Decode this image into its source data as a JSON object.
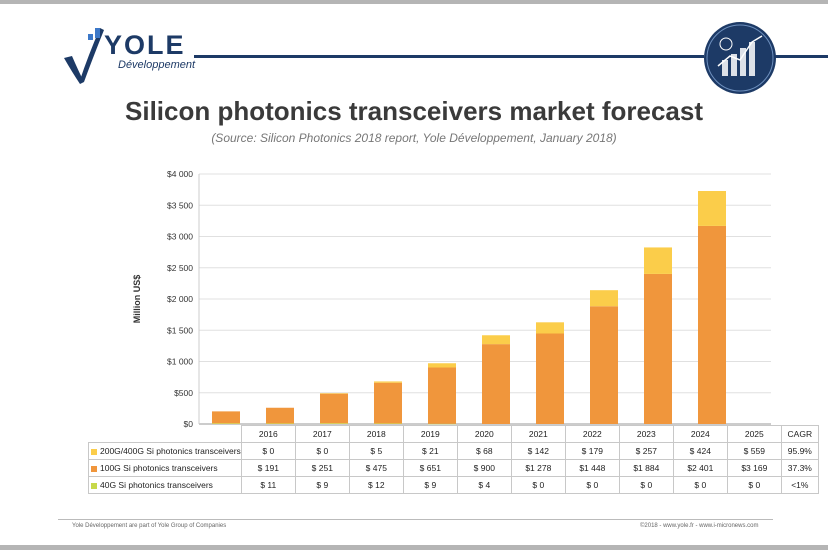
{
  "brand": {
    "name": "YOLE",
    "tagline": "Développement"
  },
  "title": "Silicon photonics transceivers market forecast",
  "subtitle": "(Source: Silicon Photonics 2018 report, Yole Développement, January 2018)",
  "footer": {
    "left": "Yole Développement are part of Yole Group of Companies",
    "right": "©2018 - www.yole.fr - www.i-micronews.com"
  },
  "colors": {
    "s200": "#fbcd4a",
    "s100": "#f0963c",
    "s40": "#c7d84a",
    "brand": "#1d3a66"
  },
  "chart_data": {
    "type": "bar",
    "stacked": true,
    "title": "Silicon photonics transceivers market forecast",
    "ylabel": "Million US$",
    "ylim": [
      0,
      4000
    ],
    "yticks": [
      0,
      500,
      1000,
      1500,
      2000,
      2500,
      3000,
      3500,
      4000
    ],
    "ytick_labels": [
      "$0",
      "$500",
      "$1 000",
      "$1 500",
      "$2 000",
      "$2 500",
      "$3 000",
      "$3 500",
      "$4 000"
    ],
    "grid": true,
    "categories": [
      "2016",
      "2017",
      "2018",
      "2019",
      "2020",
      "2021",
      "2022",
      "2023",
      "2024",
      "2025"
    ],
    "cagr_header": "CAGR",
    "series": [
      {
        "name": "200G/400G Si photonics transceivers",
        "values": [
          0,
          0,
          5,
          21,
          68,
          142,
          179,
          257,
          424,
          559
        ],
        "labels": [
          "$ 0",
          "$ 0",
          "$ 5",
          "$ 21",
          "$ 68",
          "$ 142",
          "$ 179",
          "$ 257",
          "$ 424",
          "$ 559"
        ],
        "cagr": "95.9%",
        "color": "#fbcd4a"
      },
      {
        "name": "100G Si photonics transceivers",
        "values": [
          191,
          251,
          475,
          651,
          900,
          1278,
          1448,
          1884,
          2401,
          3169
        ],
        "labels": [
          "$ 191",
          "$ 251",
          "$ 475",
          "$ 651",
          "$ 900",
          "$1 278",
          "$1 448",
          "$1 884",
          "$2 401",
          "$3 169"
        ],
        "cagr": "37.3%",
        "color": "#f0963c"
      },
      {
        "name": "40G Si photonics transceivers",
        "values": [
          11,
          9,
          12,
          9,
          4,
          0,
          0,
          0,
          0,
          0
        ],
        "labels": [
          "$ 11",
          "$ 9",
          "$ 12",
          "$ 9",
          "$ 4",
          "$ 0",
          "$ 0",
          "$ 0",
          "$ 0",
          "$ 0"
        ],
        "cagr": "<1%",
        "color": "#c7d84a"
      }
    ],
    "table_row_order": [
      0,
      1,
      2
    ]
  }
}
